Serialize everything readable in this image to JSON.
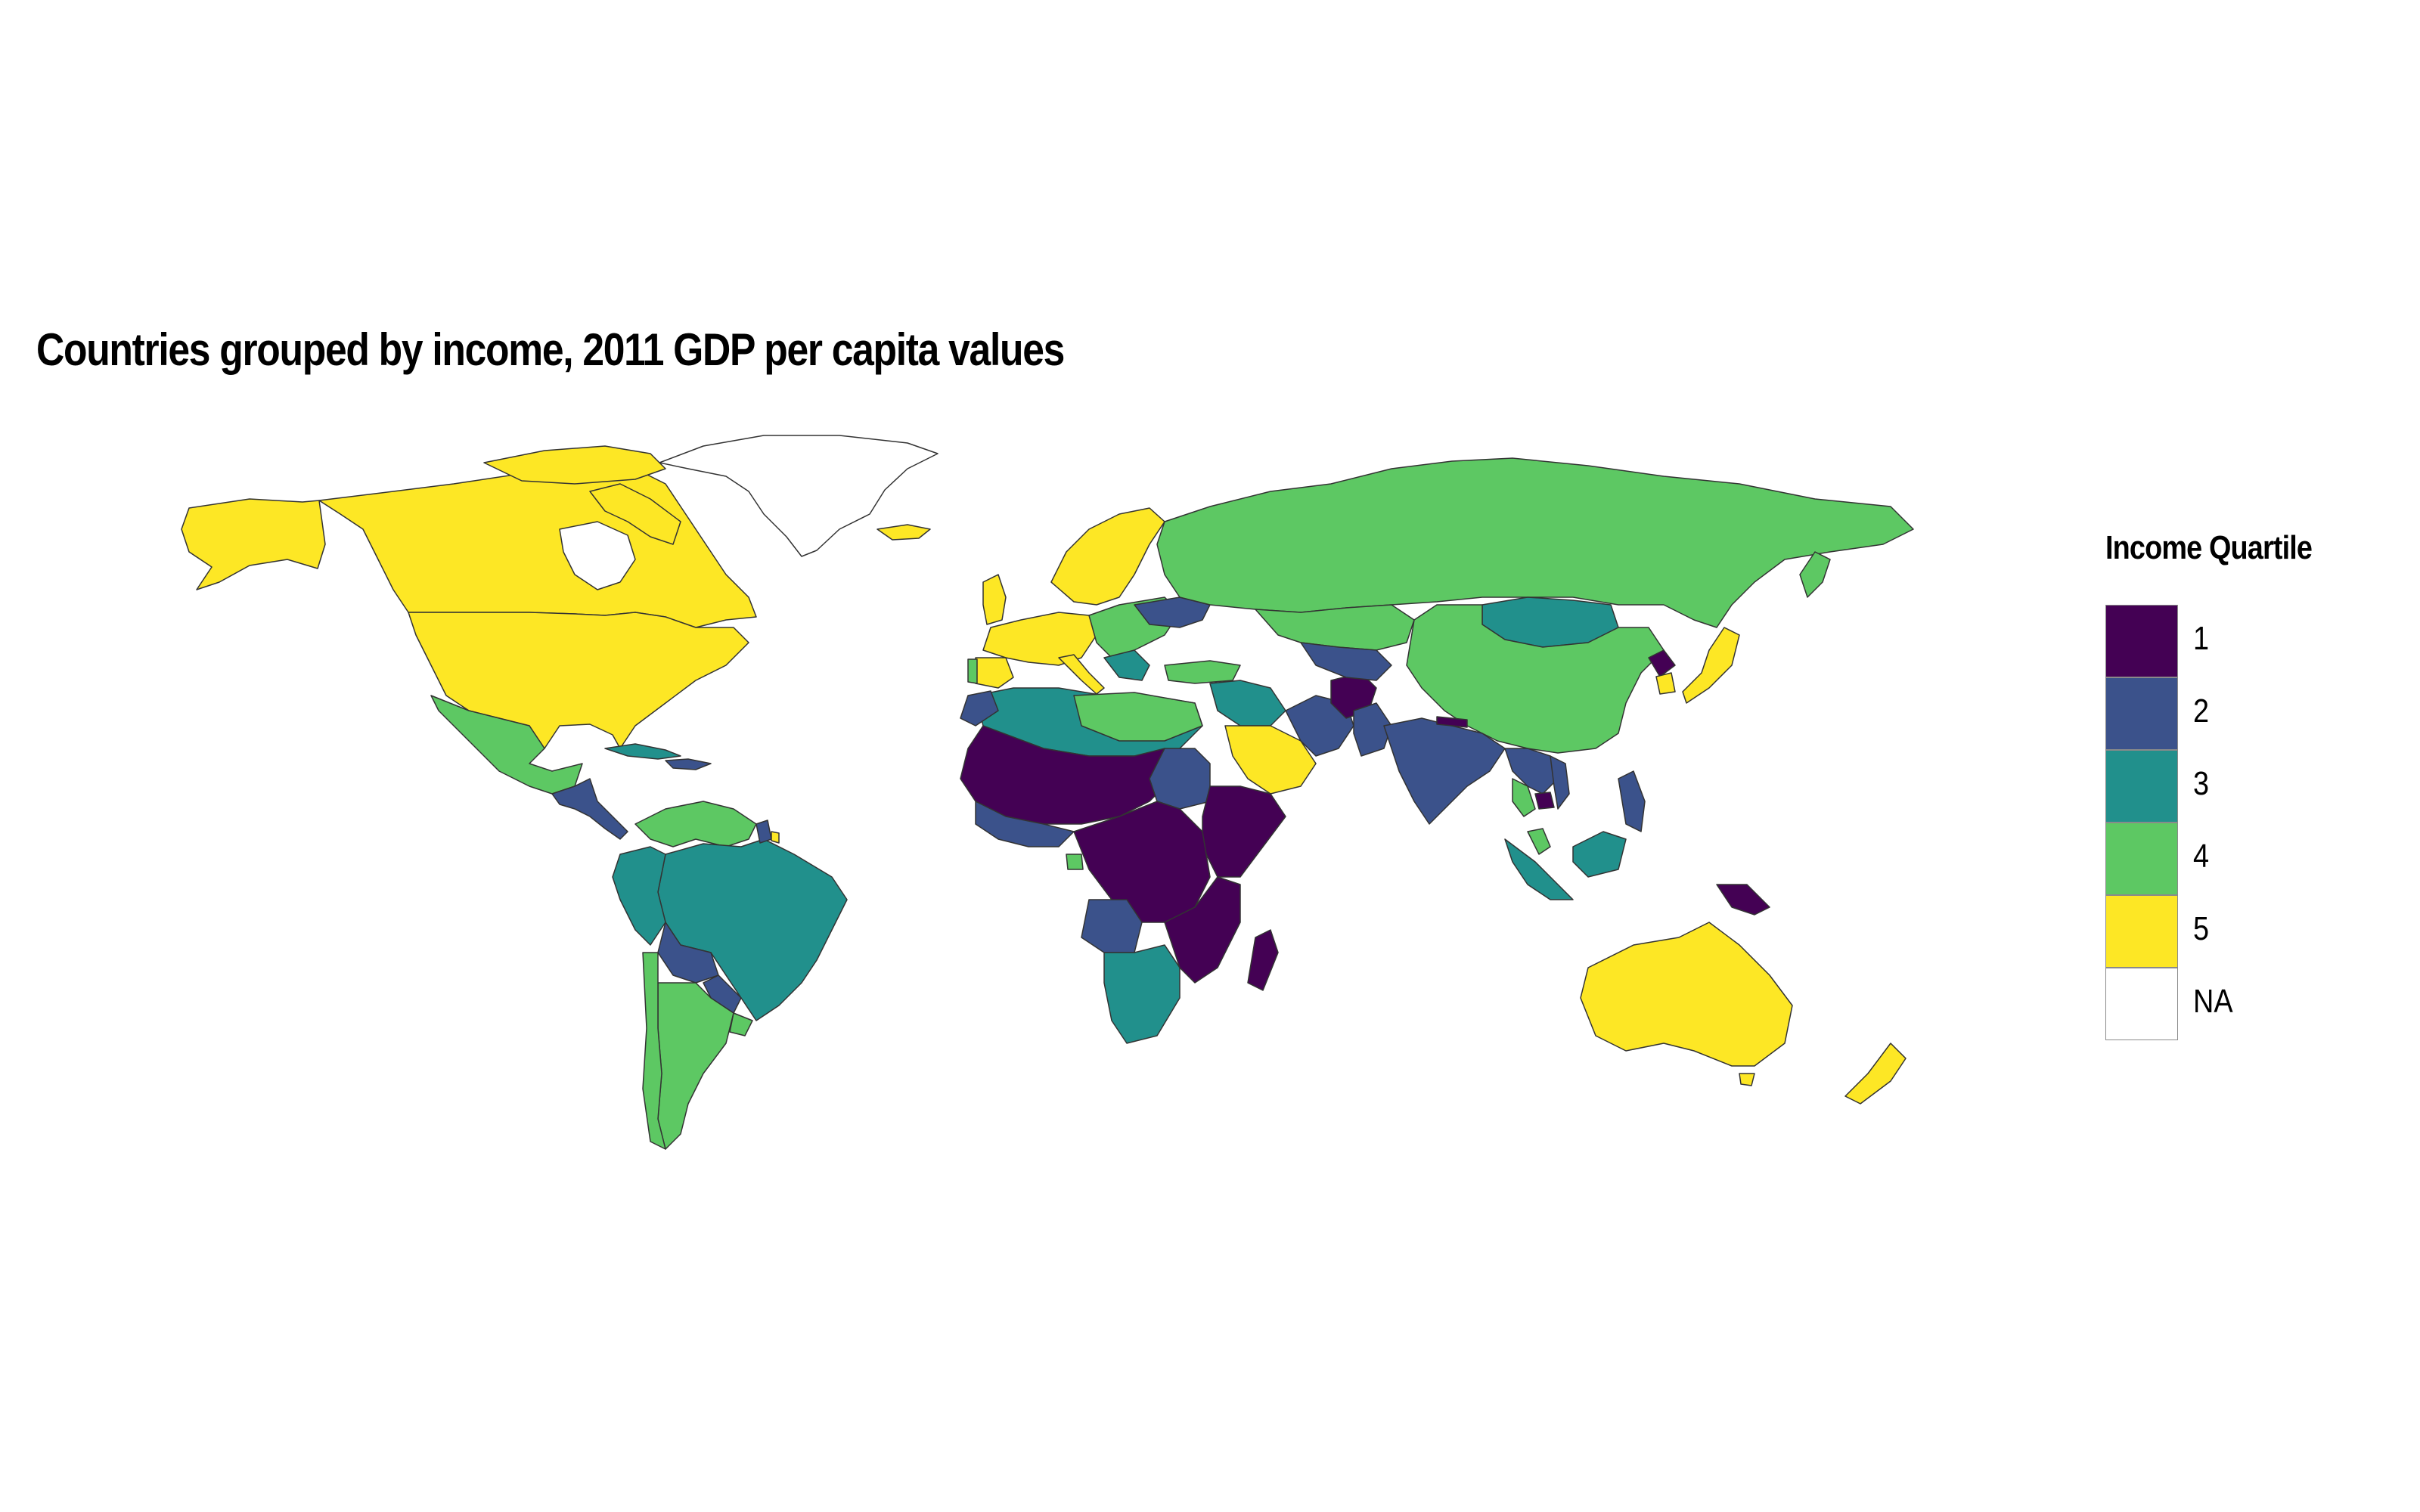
{
  "title": "Countries grouped by income, 2011 GDP per capita values",
  "legend": {
    "title": "Income Quartile",
    "items": [
      {
        "label": "1",
        "color": "#440154"
      },
      {
        "label": "2",
        "color": "#3B528B"
      },
      {
        "label": "3",
        "color": "#21908C"
      },
      {
        "label": "4",
        "color": "#5DC863"
      },
      {
        "label": "5",
        "color": "#FDE725"
      },
      {
        "label": "NA",
        "color": "#FFFFFF"
      }
    ]
  },
  "colors": {
    "q1": "#440154",
    "q2": "#3B528B",
    "q3": "#21908C",
    "q4": "#5DC863",
    "q5": "#FDE725",
    "na": "#FFFFFF",
    "border": "#333333",
    "background": "#FFFFFF"
  }
}
